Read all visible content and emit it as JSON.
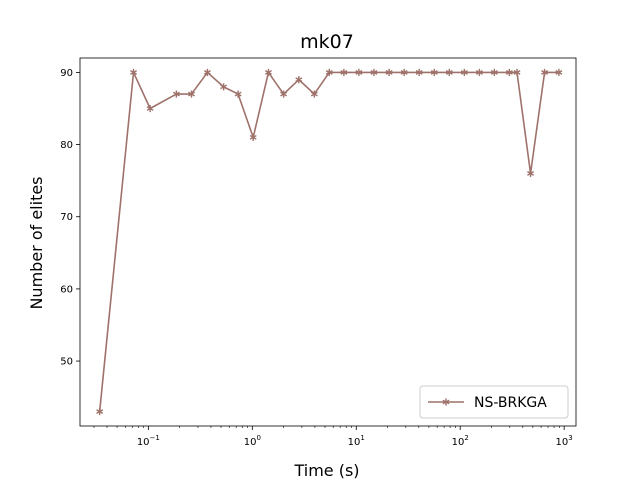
{
  "chart_data": {
    "type": "line",
    "title": "mk07",
    "xlabel": "Time (s)",
    "ylabel": "Number of elites",
    "xscale": "log",
    "xlim": [
      0.022,
      1300
    ],
    "ylim": [
      41,
      92
    ],
    "yticks": [
      50,
      60,
      70,
      80,
      90
    ],
    "xticks": [
      {
        "value": 0.1,
        "base": "10",
        "exp": "−1"
      },
      {
        "value": 1,
        "base": "10",
        "exp": "0"
      },
      {
        "value": 10,
        "base": "10",
        "exp": "1"
      },
      {
        "value": 100,
        "base": "10",
        "exp": "2"
      },
      {
        "value": 1000,
        "base": "10",
        "exp": "3"
      }
    ],
    "grid": false,
    "legend_position": "bottom-right",
    "series": [
      {
        "name": "NS-BRKGA",
        "color": "#9e726a",
        "marker": "star",
        "x": [
          0.034,
          0.072,
          0.104,
          0.186,
          0.26,
          0.37,
          0.53,
          0.73,
          1.02,
          1.43,
          2.0,
          2.8,
          3.95,
          5.5,
          7.6,
          10.6,
          14.8,
          20.7,
          28.9,
          40.3,
          56.3,
          78.5,
          109.6,
          153,
          213,
          297,
          352,
          475,
          648,
          890
        ],
        "y": [
          43,
          90,
          85,
          87,
          87,
          90,
          88,
          87,
          81,
          90,
          87,
          89,
          87,
          90,
          90,
          90,
          90,
          90,
          90,
          90,
          90,
          90,
          90,
          90,
          90,
          90,
          90,
          76,
          90,
          90
        ]
      }
    ]
  }
}
